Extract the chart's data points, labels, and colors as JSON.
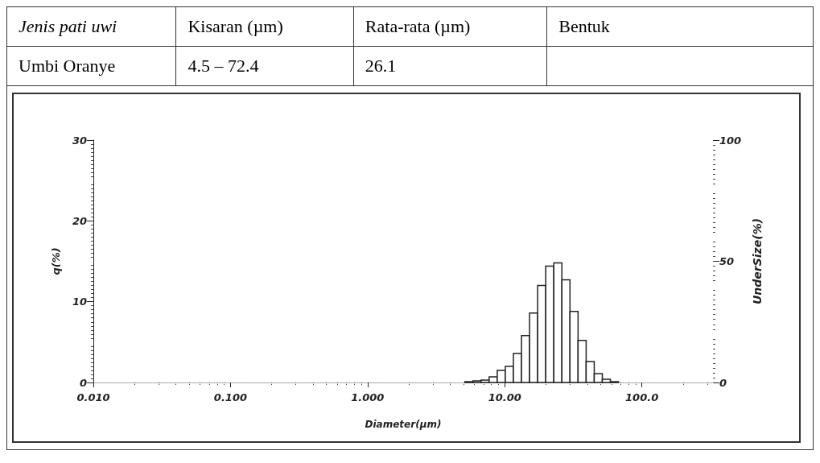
{
  "chart_data": {
    "type": "histogram",
    "annotations": [
      "Jenis pati uwi",
      "Kisaran (µm)",
      "Rata-rata (µm)",
      "Bentuk",
      "Umbi Oranye",
      "4.5 – 72.4",
      "26.1"
    ],
    "xlabel": "Diameter(µm)",
    "ylabel": "q(%)",
    "y2label": "UnderSize(%)",
    "bins": [
      5.122,
      5.867,
      6.72,
      7.697,
      8.816,
      10.097,
      11.565,
      13.246,
      15.172,
      17.377,
      19.904,
      22.797,
      26.111,
      29.907,
      34.255,
      39.234,
      44.938,
      51.471,
      58.953,
      67.523
    ],
    "values": [
      0.1,
      0.2,
      0.3,
      0.7,
      1.5,
      2.0,
      3.6,
      5.8,
      8.6,
      12.0,
      14.4,
      14.8,
      12.7,
      8.8,
      5.2,
      2.6,
      1.1,
      0.4,
      0.1
    ],
    "color": "#222222",
    "log": "x",
    "xlim": [
      0.01,
      330
    ],
    "xticks": [
      {
        "value": 0.01,
        "label": "0.010"
      },
      {
        "value": 0.1,
        "label": "0.100"
      },
      {
        "value": 1,
        "label": "1.000"
      },
      {
        "value": 10,
        "label": "10.00"
      },
      {
        "value": 100,
        "label": "100.0"
      }
    ],
    "ylim": [
      0,
      30
    ],
    "yticks": [
      0,
      10,
      20,
      30
    ],
    "y2lim": [
      0,
      100
    ],
    "y2ticks": [
      0,
      50,
      100
    ],
    "grid": false
  }
}
